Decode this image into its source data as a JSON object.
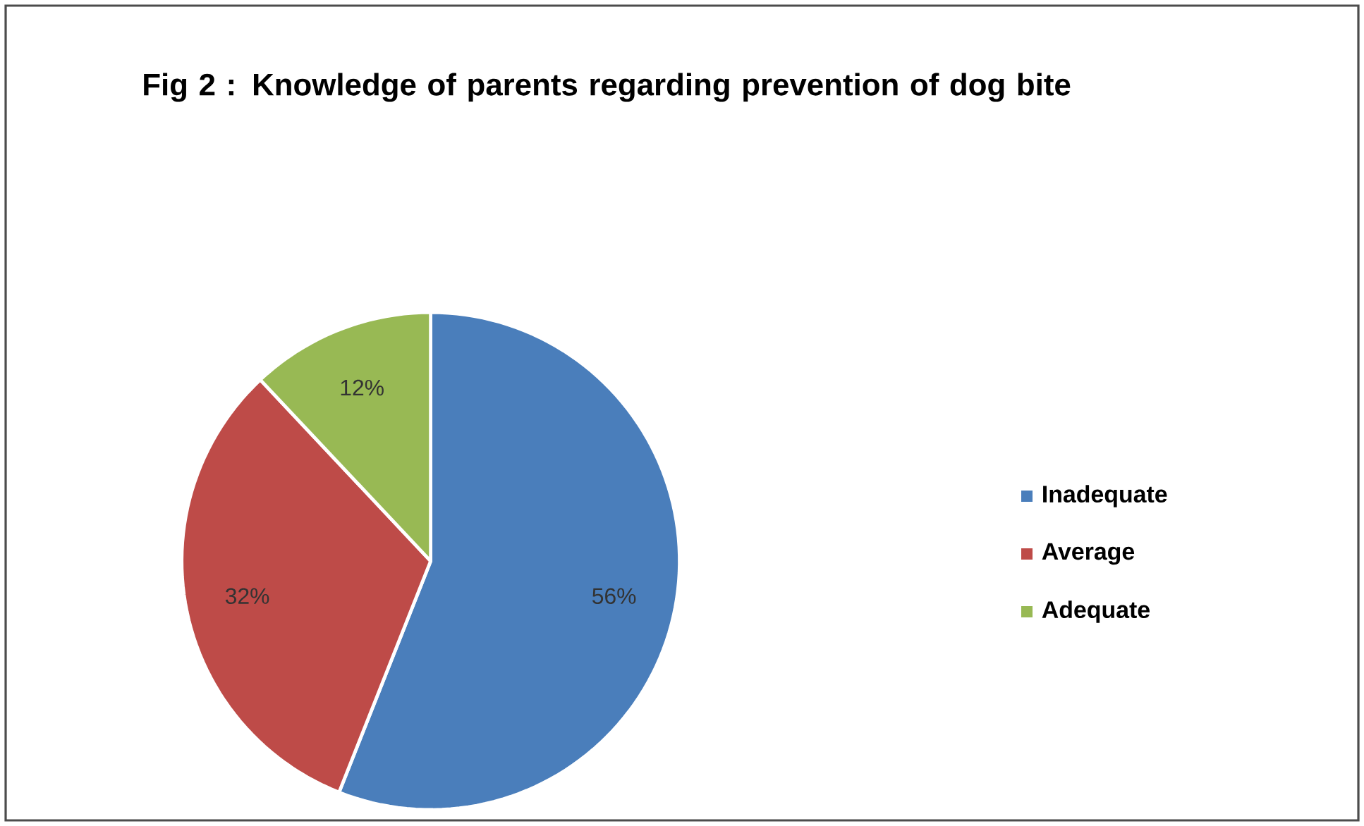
{
  "chart_data": {
    "type": "pie",
    "title": "Fig 2 : Knowledge of parents regarding prevention of dog  bite",
    "categories": [
      "Inadequate",
      "Average",
      "Adequate"
    ],
    "values": [
      56,
      32,
      12
    ],
    "colors": [
      "#4a7ebb",
      "#be4b48",
      "#98b954"
    ],
    "value_labels": [
      "56%",
      "32%",
      "12%"
    ],
    "legend": "right"
  }
}
